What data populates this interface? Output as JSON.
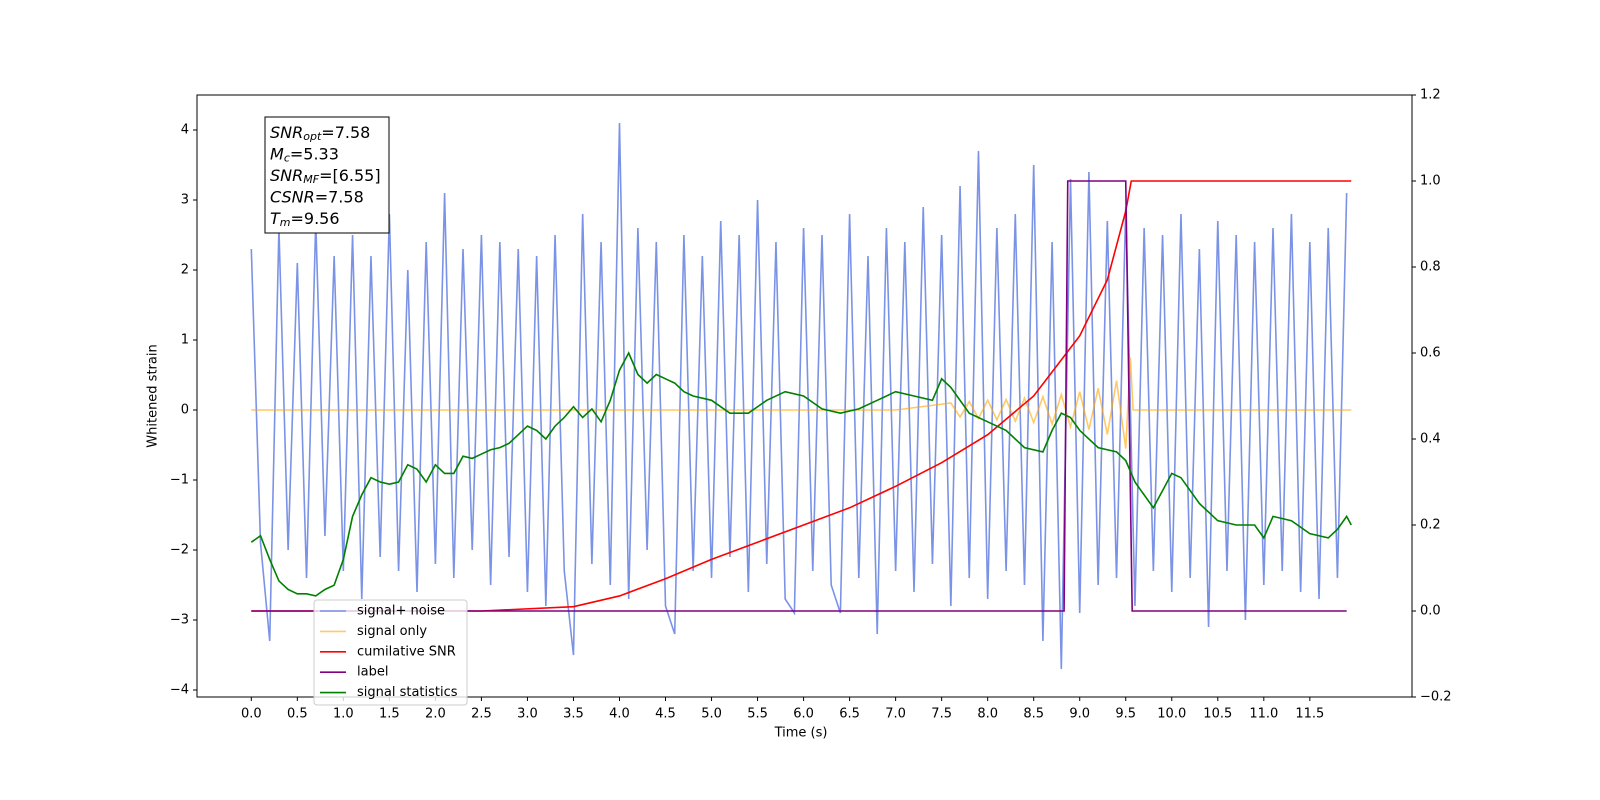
{
  "chart_data": {
    "type": "line",
    "xlabel": "Time (s)",
    "ylabel": "Whitened strain",
    "xlim": [
      -0.59,
      12.61
    ],
    "ylim": [
      -4.1,
      4.5
    ],
    "y2lim": [
      -0.2,
      1.2
    ],
    "xticks": [
      {
        "value": 0,
        "label": "0.0"
      },
      0.5,
      {
        "value": 1,
        "label": "1.0"
      },
      1.5,
      {
        "value": 2,
        "label": "2.0"
      },
      2.5,
      {
        "value": 3,
        "label": "3.0"
      },
      3.5,
      {
        "value": 4,
        "label": "4.0"
      },
      4.5,
      {
        "value": 5,
        "label": "5.0"
      },
      5.5,
      {
        "value": 6,
        "label": "6.0"
      },
      6.5,
      {
        "value": 7,
        "label": "7.0"
      },
      7.5,
      {
        "value": 8,
        "label": "8.0"
      },
      8.5,
      {
        "value": 9,
        "label": "9.0"
      },
      9.5,
      {
        "value": 10,
        "label": "10.0"
      },
      10.5,
      {
        "value": 11,
        "label": "11.0"
      },
      11.5
    ],
    "yticks": [
      {
        "value": -4,
        "label": "−4"
      },
      {
        "value": -3,
        "label": "−3"
      },
      {
        "value": -2,
        "label": "−2"
      },
      {
        "value": -1,
        "label": "−1"
      },
      0,
      1,
      2,
      3,
      4
    ],
    "y2ticks": [
      {
        "value": -0.2,
        "label": "−0.2"
      },
      {
        "value": 0,
        "label": "0.0"
      },
      0.2,
      0.4,
      0.6,
      0.8,
      {
        "value": 1,
        "label": "1.0"
      },
      1.2
    ],
    "legend": "lower left",
    "annotation": [
      {
        "name": "SNR",
        "sub": "opt",
        "value": "=7.58"
      },
      {
        "name": "M",
        "sub": "c",
        "value": "=5.33"
      },
      {
        "name": "SNR",
        "sub": "MF",
        "value": "=[6.55]"
      },
      {
        "name": "CSNR",
        "value": "=7.58"
      },
      {
        "name": "T",
        "sub": "m",
        "value": "=9.56"
      }
    ],
    "series": [
      {
        "name": "signal+ noise",
        "color": "#7b93e6",
        "axis": "y",
        "x": [
          0,
          0.1,
          0.2,
          0.3,
          0.4,
          0.5,
          0.6,
          0.7,
          0.8,
          0.9,
          1,
          1.1,
          1.2,
          1.3,
          1.4,
          1.5,
          1.6,
          1.7,
          1.8,
          1.9,
          2,
          2.1,
          2.2,
          2.3,
          2.4,
          2.5,
          2.6,
          2.7,
          2.8,
          2.9,
          3,
          3.1,
          3.2,
          3.3,
          3.4,
          3.5,
          3.6,
          3.7,
          3.8,
          3.9,
          4,
          4.1,
          4.2,
          4.3,
          4.4,
          4.5,
          4.6,
          4.7,
          4.8,
          4.9,
          5,
          5.1,
          5.2,
          5.3,
          5.4,
          5.5,
          5.6,
          5.7,
          5.8,
          5.9,
          6,
          6.1,
          6.2,
          6.3,
          6.4,
          6.5,
          6.6,
          6.7,
          6.8,
          6.9,
          7,
          7.1,
          7.2,
          7.3,
          7.4,
          7.5,
          7.6,
          7.7,
          7.8,
          7.9,
          8,
          8.1,
          8.2,
          8.3,
          8.4,
          8.5,
          8.6,
          8.7,
          8.8,
          8.9,
          9,
          9.1,
          9.2,
          9.3,
          9.4,
          9.5,
          9.6,
          9.7,
          9.8,
          9.9,
          10,
          10.1,
          10.2,
          10.3,
          10.4,
          10.5,
          10.6,
          10.7,
          10.8,
          10.9,
          11,
          11.1,
          11.2,
          11.3,
          11.4,
          11.5,
          11.6,
          11.7,
          11.8,
          11.9
        ],
        "values": [
          2.3,
          -1.9,
          -3.3,
          2.6,
          -2.0,
          2.1,
          -2.4,
          2.7,
          -1.8,
          2.2,
          -2.3,
          2.5,
          -2.7,
          2.2,
          -2.1,
          2.8,
          -2.3,
          2.0,
          -2.6,
          2.4,
          -2.2,
          3.1,
          -2.4,
          2.3,
          -2.0,
          2.5,
          -2.5,
          2.4,
          -2.1,
          2.3,
          -2.6,
          2.2,
          -2.8,
          2.5,
          -2.3,
          -3.5,
          2.8,
          -2.2,
          2.4,
          -2.5,
          4.1,
          -2.7,
          2.6,
          -2.0,
          2.4,
          -2.8,
          -3.2,
          2.5,
          -2.3,
          2.2,
          -2.4,
          2.7,
          -2.1,
          2.5,
          -2.6,
          3.0,
          -2.2,
          2.4,
          -2.7,
          -2.9,
          2.6,
          -2.3,
          2.5,
          -2.5,
          -2.9,
          2.8,
          -2.4,
          2.2,
          -3.2,
          2.6,
          -2.3,
          2.4,
          -2.6,
          2.9,
          -2.2,
          2.5,
          -2.8,
          3.2,
          -2.4,
          3.7,
          -2.7,
          2.6,
          -2.3,
          2.8,
          -2.5,
          3.5,
          -3.3,
          2.4,
          -3.7,
          3.3,
          -2.9,
          3.4,
          -2.5,
          2.7,
          -2.4,
          2.9,
          -2.8,
          2.6,
          -2.3,
          2.5,
          -2.6,
          2.8,
          -2.4,
          2.3,
          -3.1,
          2.7,
          -2.3,
          2.5,
          -3.0,
          2.4,
          -2.5,
          2.6,
          -2.3,
          2.8,
          -2.6,
          2.4,
          -2.7,
          2.6,
          -2.4,
          3.1
        ]
      },
      {
        "name": "signal only",
        "color": "#ffa500",
        "axis": "y",
        "x": [
          0,
          7.0,
          7.6,
          7.7,
          7.8,
          7.9,
          8.0,
          8.1,
          8.2,
          8.3,
          8.4,
          8.5,
          8.6,
          8.7,
          8.8,
          8.9,
          9.0,
          9.1,
          9.2,
          9.3,
          9.4,
          9.5,
          9.55,
          9.58,
          11.95
        ],
        "values": [
          0,
          0,
          0.1,
          -0.1,
          0.12,
          -0.12,
          0.14,
          -0.14,
          0.15,
          -0.16,
          0.17,
          -0.18,
          0.19,
          -0.2,
          0.22,
          -0.24,
          0.26,
          -0.28,
          0.31,
          -0.35,
          0.42,
          -0.55,
          0.75,
          0,
          0
        ]
      },
      {
        "name": "cumilative SNR",
        "color": "#ff0000",
        "axis": "y2",
        "x": [
          0,
          2.5,
          3.5,
          4.0,
          4.5,
          5.0,
          5.5,
          6.0,
          6.5,
          7.0,
          7.5,
          8.0,
          8.5,
          9.0,
          9.3,
          9.5,
          9.56,
          11.95
        ],
        "values": [
          0,
          0,
          0.01,
          0.035,
          0.075,
          0.12,
          0.16,
          0.2,
          0.24,
          0.29,
          0.345,
          0.41,
          0.5,
          0.64,
          0.77,
          0.93,
          1.0,
          1.0
        ]
      },
      {
        "name": "label",
        "color": "#800080",
        "axis": "y2",
        "x": [
          0,
          8.83,
          8.87,
          9.5,
          9.57,
          11.9
        ],
        "values": [
          0,
          0,
          1,
          1,
          0,
          0
        ]
      },
      {
        "name": "signal statistics",
        "color": "#008000",
        "axis": "y2",
        "x": [
          0,
          0.1,
          0.2,
          0.3,
          0.4,
          0.5,
          0.6,
          0.7,
          0.8,
          0.9,
          1.0,
          1.1,
          1.2,
          1.3,
          1.4,
          1.5,
          1.6,
          1.7,
          1.8,
          1.9,
          2.0,
          2.1,
          2.2,
          2.3,
          2.4,
          2.5,
          2.6,
          2.7,
          2.8,
          2.9,
          3.0,
          3.1,
          3.2,
          3.3,
          3.4,
          3.5,
          3.6,
          3.7,
          3.8,
          3.9,
          4.0,
          4.1,
          4.2,
          4.3,
          4.4,
          4.5,
          4.6,
          4.7,
          4.8,
          5.0,
          5.2,
          5.4,
          5.6,
          5.8,
          6.0,
          6.2,
          6.4,
          6.6,
          6.8,
          7.0,
          7.2,
          7.4,
          7.5,
          7.6,
          7.8,
          8.0,
          8.2,
          8.4,
          8.6,
          8.7,
          8.8,
          8.9,
          9.0,
          9.2,
          9.4,
          9.5,
          9.6,
          9.8,
          9.9,
          10.0,
          10.1,
          10.3,
          10.5,
          10.7,
          10.9,
          11.0,
          11.1,
          11.3,
          11.5,
          11.7,
          11.8,
          11.9,
          11.95
        ],
        "values": [
          0.16,
          0.175,
          0.12,
          0.07,
          0.05,
          0.04,
          0.04,
          0.035,
          0.05,
          0.06,
          0.12,
          0.22,
          0.27,
          0.31,
          0.3,
          0.295,
          0.3,
          0.34,
          0.33,
          0.3,
          0.34,
          0.32,
          0.32,
          0.36,
          0.355,
          0.365,
          0.375,
          0.38,
          0.39,
          0.41,
          0.43,
          0.42,
          0.4,
          0.43,
          0.45,
          0.475,
          0.45,
          0.47,
          0.44,
          0.49,
          0.56,
          0.6,
          0.55,
          0.53,
          0.55,
          0.54,
          0.53,
          0.51,
          0.5,
          0.49,
          0.46,
          0.46,
          0.49,
          0.51,
          0.5,
          0.47,
          0.46,
          0.47,
          0.49,
          0.51,
          0.5,
          0.49,
          0.54,
          0.52,
          0.46,
          0.44,
          0.42,
          0.38,
          0.37,
          0.42,
          0.46,
          0.45,
          0.42,
          0.38,
          0.37,
          0.35,
          0.3,
          0.24,
          0.28,
          0.32,
          0.31,
          0.25,
          0.21,
          0.2,
          0.2,
          0.17,
          0.22,
          0.21,
          0.18,
          0.17,
          0.19,
          0.22,
          0.2
        ]
      }
    ]
  }
}
